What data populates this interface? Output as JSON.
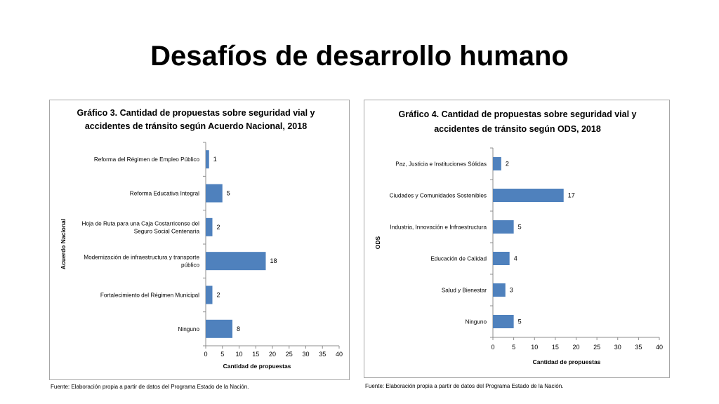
{
  "slide": {
    "title": "Desafíos de desarrollo humano"
  },
  "chart_data": [
    {
      "type": "bar",
      "orientation": "horizontal",
      "title_lines": [
        "Gráfico 3. Cantidad de propuestas sobre seguridad vial y",
        "accidentes de tránsito según Acuerdo Nacional, 2018"
      ],
      "categories": [
        [
          "Reforma del Régimen de Empleo Público"
        ],
        [
          "Reforma Educativa Integral"
        ],
        [
          "Hoja de Ruta para una Caja Costarricense del",
          "Seguro Social Centenaria"
        ],
        [
          "Modernización de infraestructura y transporte",
          "público"
        ],
        [
          "Fortalecimiento del Régimen Municipal"
        ],
        [
          "Ninguno"
        ]
      ],
      "values": [
        1,
        5,
        2,
        18,
        2,
        8
      ],
      "xlabel": "Cantidad de propuestas",
      "ylabel": "Acuerdo Nacional",
      "xlim": [
        0,
        40
      ],
      "xticks": [
        0,
        5,
        10,
        15,
        20,
        25,
        30,
        35,
        40
      ],
      "grid": false,
      "bar_color": "#4f81bd",
      "source": "Fuente: Elaboración propia a partir de datos del Programa Estado de la Nación."
    },
    {
      "type": "bar",
      "orientation": "horizontal",
      "title_lines": [
        "Gráfico 4. Cantidad de propuestas sobre seguridad vial y",
        "accidentes de tránsito según ODS, 2018"
      ],
      "categories": [
        [
          "Paz, Justicia e Instituciones Sólidas"
        ],
        [
          "Ciudades y Comunidades Sostenibles"
        ],
        [
          "Industria, Innovación e Infraestructura"
        ],
        [
          "Educación de Calidad"
        ],
        [
          "Salud y Bienestar"
        ],
        [
          "Ninguno"
        ]
      ],
      "values": [
        2,
        17,
        5,
        4,
        3,
        5
      ],
      "xlabel": "Cantidad de propuestas",
      "ylabel": "ODS",
      "xlim": [
        0,
        40
      ],
      "xticks": [
        0,
        5,
        10,
        15,
        20,
        25,
        30,
        35,
        40
      ],
      "grid": false,
      "bar_color": "#4f81bd",
      "source": "Fuente: Elaboración propia a partir de datos del Programa Estado de la Nación."
    }
  ]
}
